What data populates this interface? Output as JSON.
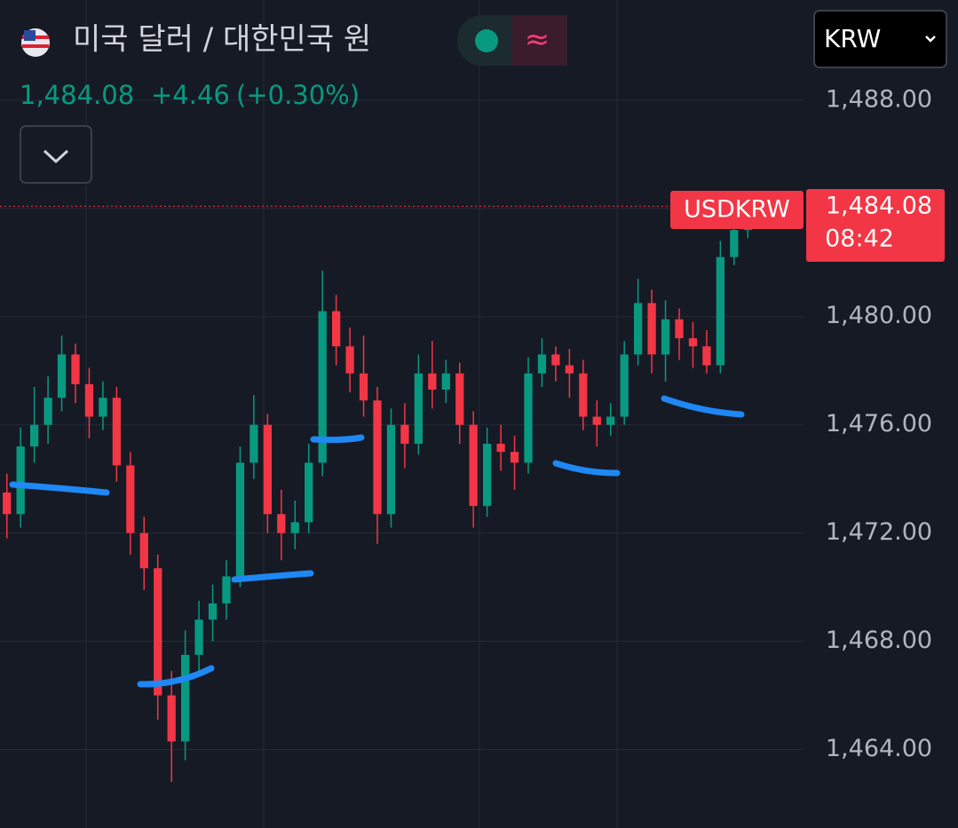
{
  "header": {
    "title": "미국 달러 / 대한민국 원",
    "change": "+4.46",
    "change_pct": "(+0.30%)",
    "currency": "KRW"
  },
  "chart_data": {
    "type": "candlestick",
    "symbol": "USDKRW",
    "time": "08:42",
    "last": {
      "value": 1484.08,
      "label": "1,484.08"
    },
    "up_color": "#089981",
    "down_color": "#f23645",
    "grid": true,
    "ylim": [
      1461.1,
      1491.7
    ],
    "yticks": [
      {
        "value": 1464,
        "label": "1,464.00"
      },
      {
        "value": 1468,
        "label": "1,468.00"
      },
      {
        "value": 1472,
        "label": "1,472.00"
      },
      {
        "value": 1476,
        "label": "1,476.00"
      },
      {
        "value": 1480,
        "label": "1,480.00"
      },
      {
        "value": 1484,
        "label": "1,484.00"
      },
      {
        "value": 1488,
        "label": "1,488.00"
      }
    ],
    "open": [
      1473.5,
      1472.7,
      1475.2,
      1476.0,
      1477.0,
      1478.6,
      1477.5,
      1476.3,
      1477.0,
      1474.5,
      1472.0,
      1470.7,
      1466.0,
      1464.3,
      1467.5,
      1468.8,
      1469.4,
      1470.4,
      1474.6,
      1476.0,
      1472.7,
      1472.0,
      1472.4,
      1474.6,
      1480.2,
      1478.9,
      1477.9,
      1476.9,
      1472.7,
      1476.0,
      1475.3,
      1477.9,
      1477.3,
      1477.9,
      1476.0,
      1473.0,
      1475.3,
      1475.0,
      1474.6,
      1477.9,
      1478.6,
      1478.2,
      1477.9,
      1476.3,
      1476.0,
      1476.3,
      1478.6,
      1480.5,
      1478.6,
      1479.9,
      1479.2,
      1478.9,
      1478.2,
      1482.2,
      1483.2
    ],
    "high": [
      1474.2,
      1475.9,
      1477.4,
      1477.8,
      1479.3,
      1479.0,
      1478.1,
      1477.6,
      1477.4,
      1475.0,
      1472.6,
      1471.2,
      1466.9,
      1468.4,
      1469.5,
      1470.1,
      1471.0,
      1475.2,
      1477.1,
      1476.4,
      1473.6,
      1473.2,
      1475.3,
      1481.7,
      1480.8,
      1479.6,
      1479.3,
      1477.4,
      1476.6,
      1476.8,
      1478.6,
      1479.1,
      1478.4,
      1478.3,
      1476.5,
      1475.9,
      1476.0,
      1475.6,
      1478.5,
      1479.2,
      1478.9,
      1478.8,
      1478.4,
      1476.9,
      1476.8,
      1479.1,
      1481.4,
      1481.0,
      1480.6,
      1480.3,
      1479.8,
      1479.5,
      1482.8,
      1484.0,
      1484.3
    ],
    "low": [
      1471.8,
      1472.2,
      1474.6,
      1475.3,
      1476.5,
      1476.8,
      1475.5,
      1475.8,
      1473.9,
      1471.2,
      1469.9,
      1465.1,
      1462.8,
      1463.6,
      1466.9,
      1468.0,
      1468.8,
      1470.0,
      1474.0,
      1472.0,
      1471.0,
      1471.4,
      1472.0,
      1474.1,
      1478.2,
      1477.2,
      1476.3,
      1471.6,
      1472.2,
      1474.4,
      1474.9,
      1476.6,
      1476.8,
      1475.3,
      1472.2,
      1472.6,
      1474.3,
      1473.6,
      1474.2,
      1477.4,
      1477.6,
      1477.0,
      1475.8,
      1475.2,
      1475.6,
      1476.0,
      1478.2,
      1477.9,
      1477.6,
      1478.4,
      1478.1,
      1477.9,
      1477.9,
      1481.9,
      1482.9
    ],
    "close": [
      1472.7,
      1475.2,
      1476.0,
      1477.0,
      1478.6,
      1477.5,
      1476.3,
      1477.0,
      1474.5,
      1472.0,
      1470.7,
      1466.0,
      1464.3,
      1467.5,
      1468.8,
      1469.4,
      1470.4,
      1474.6,
      1476.0,
      1472.7,
      1472.0,
      1472.4,
      1474.6,
      1480.2,
      1478.9,
      1477.9,
      1476.9,
      1472.7,
      1476.0,
      1475.3,
      1477.9,
      1477.3,
      1477.9,
      1476.0,
      1473.0,
      1475.3,
      1475.0,
      1474.6,
      1477.9,
      1478.6,
      1478.2,
      1477.9,
      1476.3,
      1476.0,
      1476.3,
      1478.6,
      1480.5,
      1478.6,
      1479.9,
      1479.2,
      1478.9,
      1478.2,
      1482.2,
      1483.2,
      1484.08
    ]
  }
}
